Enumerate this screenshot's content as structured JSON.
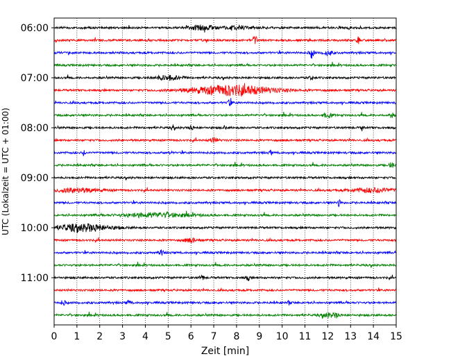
{
  "chart_data": {
    "type": "line",
    "title": "",
    "xlabel": "Zeit  [min]",
    "ylabel": "UTC (Lokalzeit = UTC + 01:00)",
    "xlim": [
      0,
      15
    ],
    "x_ticks": [
      0,
      1,
      2,
      3,
      4,
      5,
      6,
      7,
      8,
      9,
      10,
      11,
      12,
      13,
      14,
      15
    ],
    "x_tick_labels": [
      "0",
      "1",
      "2",
      "3",
      "4",
      "5",
      "6",
      "7",
      "8",
      "9",
      "10",
      "11",
      "12",
      "13",
      "14",
      "15"
    ],
    "y_tick_labels": [
      "06:00",
      "07:00",
      "08:00",
      "09:00",
      "10:00",
      "11:00"
    ],
    "grid": "x-dotted",
    "trace_colors": [
      "#000000",
      "#ff0000",
      "#0000ff",
      "#008000"
    ],
    "traces": [
      {
        "start": "06:00",
        "color": "#000000",
        "events": [
          {
            "t": 6.5,
            "a": 3,
            "w": 0.6
          },
          {
            "t": 8.0,
            "a": 3,
            "w": 0.5
          }
        ]
      },
      {
        "start": "06:15",
        "color": "#ff0000",
        "events": [
          {
            "t": 8.8,
            "a": 7,
            "w": 0.1
          },
          {
            "t": 13.3,
            "a": 6,
            "w": 0.08
          }
        ]
      },
      {
        "start": "06:30",
        "color": "#0000ff",
        "events": [
          {
            "t": 11.3,
            "a": 7,
            "w": 0.1
          },
          {
            "t": 12.0,
            "a": 3,
            "w": 0.2
          }
        ]
      },
      {
        "start": "06:45",
        "color": "#008000",
        "events": []
      },
      {
        "start": "07:00",
        "color": "#000000",
        "events": [
          {
            "t": 5.0,
            "a": 3,
            "w": 0.6
          },
          {
            "t": 11.3,
            "a": 3,
            "w": 0.1
          }
        ]
      },
      {
        "start": "07:15",
        "color": "#ff0000",
        "events": [
          {
            "t": 7.8,
            "a": 7,
            "w": 1.8
          }
        ]
      },
      {
        "start": "07:30",
        "color": "#0000ff",
        "events": [
          {
            "t": 7.7,
            "a": 4,
            "w": 0.1
          }
        ]
      },
      {
        "start": "07:45",
        "color": "#008000",
        "events": [
          {
            "t": 12.0,
            "a": 3,
            "w": 0.2
          },
          {
            "t": 14.8,
            "a": 3,
            "w": 0.1
          }
        ]
      },
      {
        "start": "08:00",
        "color": "#000000",
        "events": [
          {
            "t": 5.2,
            "a": 4,
            "w": 0.05
          },
          {
            "t": 6.0,
            "a": 4,
            "w": 0.08
          },
          {
            "t": 7.5,
            "a": 3,
            "w": 0.05
          },
          {
            "t": 13.5,
            "a": 4,
            "w": 0.05
          }
        ]
      },
      {
        "start": "08:15",
        "color": "#ff0000",
        "events": [
          {
            "t": 7.0,
            "a": 3,
            "w": 0.2
          }
        ]
      },
      {
        "start": "08:30",
        "color": "#0000ff",
        "events": [
          {
            "t": 1.3,
            "a": 4,
            "w": 0.05
          },
          {
            "t": 5.1,
            "a": 4,
            "w": 0.05
          },
          {
            "t": 9.5,
            "a": 3,
            "w": 0.05
          }
        ]
      },
      {
        "start": "08:45",
        "color": "#008000",
        "events": [
          {
            "t": 14.8,
            "a": 4,
            "w": 0.1
          }
        ]
      },
      {
        "start": "09:00",
        "color": "#000000",
        "events": []
      },
      {
        "start": "09:15",
        "color": "#ff0000",
        "events": [
          {
            "t": 1.0,
            "a": 3,
            "w": 1.0
          },
          {
            "t": 14.0,
            "a": 3,
            "w": 1.0
          }
        ]
      },
      {
        "start": "09:30",
        "color": "#0000ff",
        "events": [
          {
            "t": 12.5,
            "a": 6,
            "w": 0.05
          }
        ]
      },
      {
        "start": "09:45",
        "color": "#008000",
        "events": [
          {
            "t": 4.5,
            "a": 3,
            "w": 1.5
          }
        ]
      },
      {
        "start": "10:00",
        "color": "#000000",
        "events": [
          {
            "t": 1.3,
            "a": 5,
            "w": 1.2
          }
        ]
      },
      {
        "start": "10:15",
        "color": "#ff0000",
        "events": [
          {
            "t": 6.0,
            "a": 3,
            "w": 0.3
          }
        ]
      },
      {
        "start": "10:30",
        "color": "#0000ff",
        "events": [
          {
            "t": 4.7,
            "a": 6,
            "w": 0.08
          }
        ]
      },
      {
        "start": "10:45",
        "color": "#008000",
        "events": []
      },
      {
        "start": "11:00",
        "color": "#000000",
        "events": [
          {
            "t": 6.5,
            "a": 3,
            "w": 0.1
          },
          {
            "t": 8.5,
            "a": 3,
            "w": 0.1
          }
        ]
      },
      {
        "start": "11:15",
        "color": "#ff0000",
        "events": []
      },
      {
        "start": "11:30",
        "color": "#0000ff",
        "events": [
          {
            "t": 0.4,
            "a": 3,
            "w": 0.1
          },
          {
            "t": 3.3,
            "a": 3,
            "w": 0.1
          },
          {
            "t": 10.3,
            "a": 3,
            "w": 0.05
          }
        ]
      },
      {
        "start": "11:45",
        "color": "#008000",
        "events": [
          {
            "t": 12.0,
            "a": 3,
            "w": 0.3
          },
          {
            "t": 12.4,
            "a": 3,
            "w": 0.1
          }
        ]
      }
    ]
  }
}
